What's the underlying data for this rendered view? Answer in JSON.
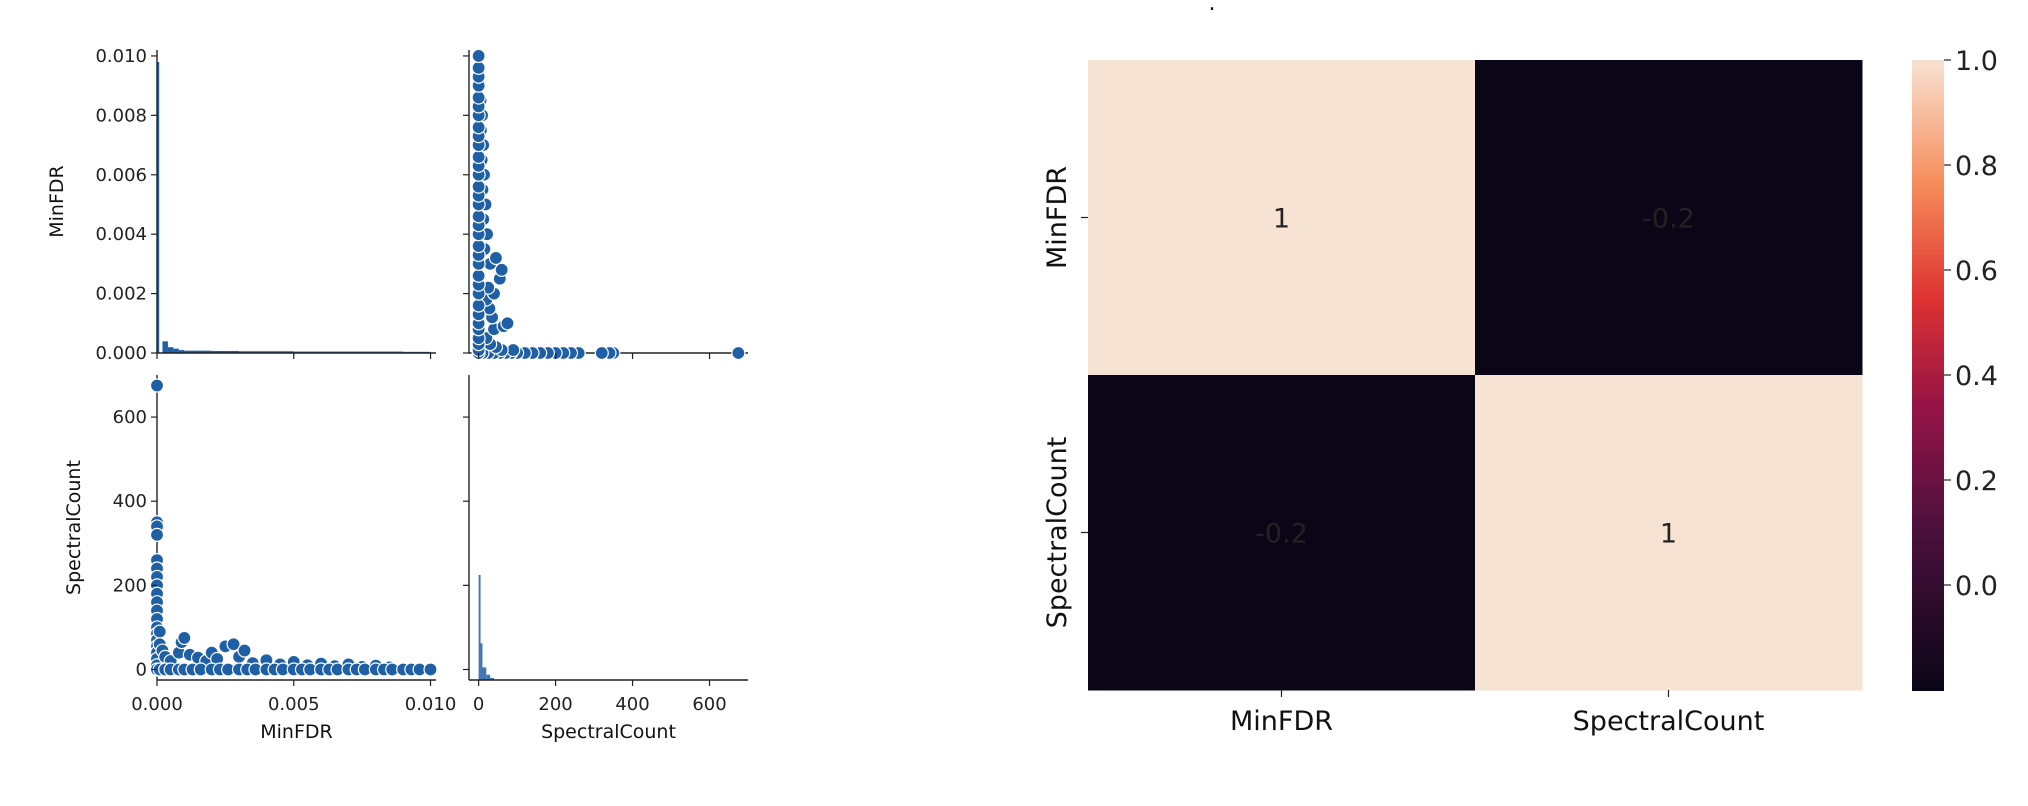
{
  "title": ".",
  "colors": {
    "scatter": "#1f5fa6",
    "hist": "#1f5fa6",
    "heat_low": "#0b0617",
    "heat_high": "#f7e3d4"
  },
  "chart_data": [
    {
      "type": "scatter",
      "subtype": "pairplot",
      "variables": [
        "MinFDR",
        "SpectralCount"
      ],
      "axes": {
        "MinFDR": {
          "range": [
            0,
            0.0102
          ],
          "ticks": [
            0.0,
            0.002,
            0.004,
            0.006,
            0.008,
            0.01
          ],
          "tick_labels": [
            "0.000",
            "0.002",
            "0.004",
            "0.006",
            "0.008",
            "0.010"
          ],
          "x_ticks": [
            0.0,
            0.005,
            0.01
          ],
          "x_tick_labels": [
            "0.000",
            "0.005",
            "0.010"
          ]
        },
        "SpectralCount": {
          "range": [
            -25,
            700
          ],
          "ticks": [
            0,
            200,
            400,
            600
          ],
          "tick_labels": [
            "0",
            "200",
            "400",
            "600"
          ]
        }
      },
      "xlabels": [
        "MinFDR",
        "SpectralCount"
      ],
      "ylabels": [
        "MinFDR",
        "SpectralCount"
      ],
      "diag_hist": {
        "MinFDR": {
          "bins": [
            0,
            0.0002,
            0.0004,
            0.0006,
            0.0008,
            0.001,
            0.002,
            0.003,
            0.004,
            0.005,
            0.006,
            0.007,
            0.008,
            0.009,
            0.01
          ],
          "heights": [
            1.0,
            0.04,
            0.02,
            0.015,
            0.01,
            0.008,
            0.007,
            0.006,
            0.006,
            0.005,
            0.005,
            0.005,
            0.005,
            0.004
          ]
        },
        "SpectralCount": {
          "bins": [
            0,
            5,
            10,
            20,
            30,
            40
          ],
          "heights": [
            1.0,
            0.35,
            0.12,
            0.05,
            0.02
          ]
        }
      },
      "points": [
        [
          0.0,
          675
        ],
        [
          0.0,
          350
        ],
        [
          0.0,
          340
        ],
        [
          0.0,
          320
        ],
        [
          0.0,
          260
        ],
        [
          0.0,
          240
        ],
        [
          0.0,
          220
        ],
        [
          0.0,
          200
        ],
        [
          0.0,
          180
        ],
        [
          0.0,
          160
        ],
        [
          0.0,
          140
        ],
        [
          0.0,
          120
        ],
        [
          0.0,
          100
        ],
        [
          0.0,
          85
        ],
        [
          0.0,
          70
        ],
        [
          0.0,
          55
        ],
        [
          0.0,
          40
        ],
        [
          0.0,
          25
        ],
        [
          0.0,
          10
        ],
        [
          0.0,
          0
        ],
        [
          0.0001,
          90
        ],
        [
          0.0001,
          60
        ],
        [
          0.0002,
          45
        ],
        [
          0.0003,
          30
        ],
        [
          0.0005,
          20
        ],
        [
          0.0008,
          40
        ],
        [
          0.0009,
          65
        ],
        [
          0.001,
          75
        ],
        [
          0.0012,
          35
        ],
        [
          0.0015,
          28
        ],
        [
          0.0018,
          20
        ],
        [
          0.002,
          40
        ],
        [
          0.0022,
          25
        ],
        [
          0.0025,
          55
        ],
        [
          0.0028,
          60
        ],
        [
          0.003,
          30
        ],
        [
          0.0032,
          45
        ],
        [
          0.0035,
          15
        ],
        [
          0.004,
          22
        ],
        [
          0.0045,
          12
        ],
        [
          0.005,
          18
        ],
        [
          0.0055,
          10
        ],
        [
          0.006,
          14
        ],
        [
          0.0065,
          8
        ],
        [
          0.007,
          12
        ],
        [
          0.0075,
          6
        ],
        [
          0.008,
          9
        ],
        [
          0.0085,
          5
        ],
        [
          0.0001,
          0
        ],
        [
          0.0003,
          0
        ],
        [
          0.0005,
          0
        ],
        [
          0.0008,
          0
        ],
        [
          0.001,
          0
        ],
        [
          0.0013,
          0
        ],
        [
          0.0016,
          0
        ],
        [
          0.002,
          0
        ],
        [
          0.0023,
          0
        ],
        [
          0.0026,
          0
        ],
        [
          0.003,
          0
        ],
        [
          0.0033,
          0
        ],
        [
          0.0036,
          0
        ],
        [
          0.004,
          0
        ],
        [
          0.0043,
          0
        ],
        [
          0.0046,
          0
        ],
        [
          0.005,
          0
        ],
        [
          0.0053,
          0
        ],
        [
          0.0056,
          0
        ],
        [
          0.006,
          0
        ],
        [
          0.0063,
          0
        ],
        [
          0.0066,
          0
        ],
        [
          0.007,
          0
        ],
        [
          0.0073,
          0
        ],
        [
          0.0076,
          0
        ],
        [
          0.008,
          0
        ],
        [
          0.0083,
          0
        ],
        [
          0.0086,
          0
        ],
        [
          0.009,
          0
        ],
        [
          0.0093,
          0
        ],
        [
          0.0096,
          0
        ],
        [
          0.01,
          0
        ]
      ]
    },
    {
      "type": "heatmap",
      "rows": [
        "MinFDR",
        "SpectralCount"
      ],
      "cols": [
        "MinFDR",
        "SpectralCount"
      ],
      "values": [
        [
          1,
          -0.2
        ],
        [
          -0.2,
          1
        ]
      ],
      "annotations": [
        [
          "1",
          "-0.2"
        ],
        [
          "-0.2",
          "1"
        ]
      ],
      "colorbar": {
        "range": [
          -0.2,
          1.0
        ],
        "ticks": [
          0.0,
          0.2,
          0.4,
          0.6,
          0.8,
          1.0
        ],
        "tick_labels": [
          "0.0",
          "0.2",
          "0.4",
          "0.6",
          "0.8",
          "1.0"
        ]
      }
    }
  ]
}
